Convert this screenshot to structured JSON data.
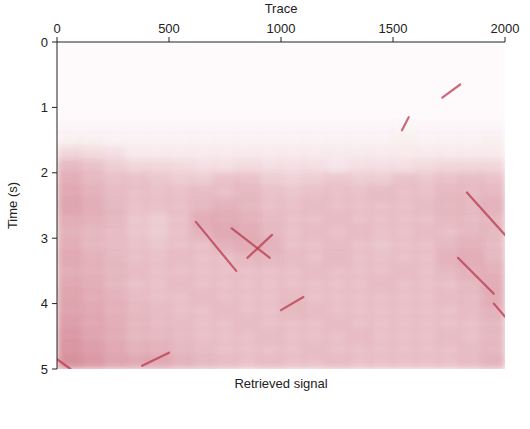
{
  "chart_data": {
    "type": "heatmap",
    "title": "Retrieved signal",
    "x_label": "Trace",
    "y_label": "Time (s)",
    "xlim": [
      0,
      2000
    ],
    "ylim": [
      0,
      5
    ],
    "xticks": [
      0,
      500,
      1000,
      1500,
      2000
    ],
    "yticks": [
      0,
      1,
      2,
      3,
      4,
      5
    ],
    "color": "#b8394f",
    "cells": [
      [
        0.02,
        0.02,
        0.02,
        0.02,
        0.02,
        0.02,
        0.02,
        0.02,
        0.02,
        0.02,
        0.02,
        0.02,
        0.02,
        0.02,
        0.02,
        0.02,
        0.02,
        0.02,
        0.02,
        0.02
      ],
      [
        0.02,
        0.02,
        0.02,
        0.02,
        0.02,
        0.02,
        0.02,
        0.02,
        0.02,
        0.02,
        0.02,
        0.02,
        0.02,
        0.02,
        0.02,
        0.02,
        0.02,
        0.02,
        0.02,
        0.02
      ],
      [
        0.02,
        0.02,
        0.02,
        0.02,
        0.02,
        0.02,
        0.02,
        0.02,
        0.02,
        0.02,
        0.02,
        0.02,
        0.02,
        0.02,
        0.02,
        0.02,
        0.02,
        0.02,
        0.02,
        0.02
      ],
      [
        0.02,
        0.02,
        0.02,
        0.02,
        0.02,
        0.02,
        0.02,
        0.02,
        0.02,
        0.02,
        0.02,
        0.02,
        0.02,
        0.02,
        0.02,
        0.02,
        0.02,
        0.02,
        0.02,
        0.02
      ],
      [
        0.02,
        0.02,
        0.02,
        0.02,
        0.02,
        0.02,
        0.02,
        0.02,
        0.02,
        0.02,
        0.02,
        0.02,
        0.02,
        0.02,
        0.02,
        0.02,
        0.02,
        0.02,
        0.02,
        0.02
      ],
      [
        0.02,
        0.02,
        0.02,
        0.02,
        0.02,
        0.02,
        0.02,
        0.02,
        0.02,
        0.02,
        0.02,
        0.02,
        0.02,
        0.02,
        0.02,
        0.02,
        0.02,
        0.02,
        0.02,
        0.02
      ],
      [
        0.04,
        0.04,
        0.04,
        0.04,
        0.04,
        0.04,
        0.04,
        0.04,
        0.04,
        0.04,
        0.04,
        0.04,
        0.04,
        0.04,
        0.04,
        0.05,
        0.04,
        0.04,
        0.04,
        0.04
      ],
      [
        0.08,
        0.08,
        0.07,
        0.07,
        0.07,
        0.07,
        0.07,
        0.07,
        0.07,
        0.07,
        0.07,
        0.07,
        0.07,
        0.07,
        0.07,
        0.08,
        0.07,
        0.07,
        0.07,
        0.08
      ],
      [
        0.2,
        0.18,
        0.15,
        0.1,
        0.1,
        0.1,
        0.1,
        0.1,
        0.1,
        0.1,
        0.1,
        0.1,
        0.1,
        0.1,
        0.1,
        0.1,
        0.1,
        0.1,
        0.1,
        0.1
      ],
      [
        0.35,
        0.3,
        0.25,
        0.2,
        0.2,
        0.18,
        0.15,
        0.15,
        0.18,
        0.15,
        0.15,
        0.15,
        0.12,
        0.15,
        0.15,
        0.15,
        0.18,
        0.2,
        0.2,
        0.2
      ],
      [
        0.4,
        0.35,
        0.3,
        0.3,
        0.28,
        0.25,
        0.25,
        0.3,
        0.3,
        0.25,
        0.22,
        0.25,
        0.28,
        0.25,
        0.25,
        0.3,
        0.28,
        0.3,
        0.32,
        0.3
      ],
      [
        0.42,
        0.38,
        0.32,
        0.3,
        0.3,
        0.3,
        0.32,
        0.3,
        0.35,
        0.3,
        0.28,
        0.3,
        0.3,
        0.3,
        0.32,
        0.3,
        0.3,
        0.35,
        0.32,
        0.35
      ],
      [
        0.45,
        0.4,
        0.35,
        0.3,
        0.3,
        0.3,
        0.35,
        0.38,
        0.35,
        0.3,
        0.3,
        0.32,
        0.3,
        0.3,
        0.3,
        0.3,
        0.32,
        0.35,
        0.35,
        0.38
      ],
      [
        0.4,
        0.38,
        0.35,
        0.28,
        0.25,
        0.3,
        0.4,
        0.4,
        0.38,
        0.32,
        0.3,
        0.3,
        0.32,
        0.3,
        0.3,
        0.3,
        0.3,
        0.35,
        0.32,
        0.35
      ],
      [
        0.38,
        0.35,
        0.32,
        0.28,
        0.25,
        0.3,
        0.38,
        0.42,
        0.4,
        0.35,
        0.3,
        0.32,
        0.3,
        0.32,
        0.3,
        0.3,
        0.32,
        0.3,
        0.35,
        0.35
      ],
      [
        0.4,
        0.35,
        0.32,
        0.3,
        0.28,
        0.3,
        0.3,
        0.38,
        0.4,
        0.38,
        0.3,
        0.3,
        0.32,
        0.3,
        0.28,
        0.3,
        0.3,
        0.35,
        0.38,
        0.32
      ],
      [
        0.42,
        0.38,
        0.35,
        0.3,
        0.3,
        0.32,
        0.3,
        0.3,
        0.35,
        0.35,
        0.32,
        0.3,
        0.35,
        0.3,
        0.3,
        0.3,
        0.3,
        0.38,
        0.4,
        0.35
      ],
      [
        0.4,
        0.38,
        0.35,
        0.32,
        0.3,
        0.3,
        0.3,
        0.3,
        0.3,
        0.3,
        0.3,
        0.32,
        0.3,
        0.3,
        0.3,
        0.32,
        0.3,
        0.35,
        0.38,
        0.38
      ],
      [
        0.42,
        0.4,
        0.35,
        0.3,
        0.3,
        0.32,
        0.3,
        0.3,
        0.3,
        0.3,
        0.3,
        0.3,
        0.3,
        0.3,
        0.32,
        0.3,
        0.3,
        0.3,
        0.35,
        0.4
      ],
      [
        0.45,
        0.4,
        0.38,
        0.32,
        0.3,
        0.3,
        0.32,
        0.3,
        0.3,
        0.3,
        0.32,
        0.3,
        0.3,
        0.3,
        0.3,
        0.3,
        0.3,
        0.32,
        0.32,
        0.4
      ],
      [
        0.45,
        0.42,
        0.38,
        0.35,
        0.32,
        0.3,
        0.3,
        0.32,
        0.3,
        0.3,
        0.35,
        0.32,
        0.3,
        0.3,
        0.3,
        0.3,
        0.3,
        0.3,
        0.32,
        0.38
      ],
      [
        0.48,
        0.42,
        0.4,
        0.35,
        0.32,
        0.32,
        0.3,
        0.3,
        0.32,
        0.3,
        0.3,
        0.3,
        0.32,
        0.3,
        0.3,
        0.3,
        0.3,
        0.3,
        0.3,
        0.35
      ],
      [
        0.5,
        0.45,
        0.4,
        0.35,
        0.35,
        0.32,
        0.3,
        0.3,
        0.3,
        0.32,
        0.3,
        0.3,
        0.3,
        0.32,
        0.3,
        0.3,
        0.3,
        0.32,
        0.3,
        0.35
      ],
      [
        0.52,
        0.48,
        0.42,
        0.38,
        0.38,
        0.35,
        0.32,
        0.3,
        0.3,
        0.3,
        0.3,
        0.32,
        0.3,
        0.3,
        0.3,
        0.3,
        0.3,
        0.3,
        0.32,
        0.35
      ],
      [
        0.55,
        0.5,
        0.45,
        0.42,
        0.42,
        0.38,
        0.35,
        0.32,
        0.3,
        0.32,
        0.3,
        0.3,
        0.32,
        0.3,
        0.3,
        0.3,
        0.3,
        0.3,
        0.32,
        0.38
      ]
    ],
    "events": [
      {
        "x": [
          620,
          800
        ],
        "values": [
          2.75,
          3.5
        ]
      },
      {
        "x": [
          1830,
          2000
        ],
        "values": [
          2.3,
          2.95
        ]
      },
      {
        "x": [
          1790,
          1950
        ],
        "values": [
          3.3,
          3.85
        ]
      },
      {
        "x": [
          1950,
          2000
        ],
        "values": [
          4.0,
          4.2
        ]
      },
      {
        "x": [
          1540,
          1570
        ],
        "values": [
          1.35,
          1.15
        ]
      },
      {
        "x": [
          1720,
          1800
        ],
        "values": [
          0.85,
          0.65
        ]
      },
      {
        "x": [
          780,
          950
        ],
        "values": [
          2.85,
          3.3
        ]
      },
      {
        "x": [
          850,
          960
        ],
        "values": [
          3.3,
          2.95
        ]
      },
      {
        "x": [
          1000,
          1100
        ],
        "values": [
          4.1,
          3.9
        ]
      },
      {
        "x": [
          380,
          500
        ],
        "values": [
          4.95,
          4.75
        ]
      },
      {
        "x": [
          0,
          60
        ],
        "values": [
          4.85,
          5
        ]
      }
    ]
  }
}
